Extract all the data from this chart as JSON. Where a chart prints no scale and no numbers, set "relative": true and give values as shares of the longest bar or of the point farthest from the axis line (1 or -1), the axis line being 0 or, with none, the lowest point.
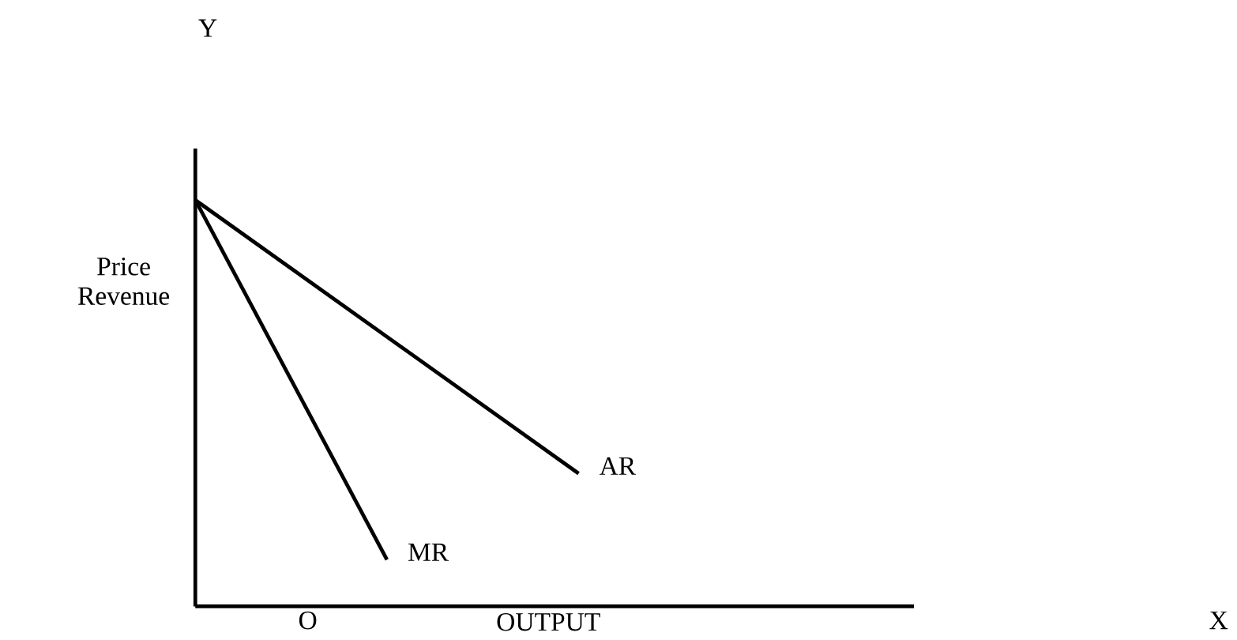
{
  "chart_data": {
    "type": "line",
    "relative": true,
    "xlabel": "OUTPUT",
    "ylabel": "Price Revenue",
    "categories": [
      null,
      null,
      null,
      null,
      null,
      null,
      null,
      null,
      null,
      null,
      null,
      null,
      null,
      null,
      null,
      null
    ],
    "series": [
      {
        "name": "AR",
        "color": "#000000",
        "values": [
          1,
          null,
          null,
          null,
          null,
          null,
          null,
          null,
          0.327,
          null,
          null,
          null,
          null,
          null,
          null,
          null
        ]
      },
      {
        "name": "MR",
        "color": "#000000",
        "values": [
          1,
          null,
          null,
          null,
          0.115,
          null,
          null,
          null,
          null,
          null,
          null,
          null,
          null,
          null,
          null,
          null
        ]
      }
    ],
    "annotations": [
      "Y",
      "O",
      "X"
    ]
  }
}
